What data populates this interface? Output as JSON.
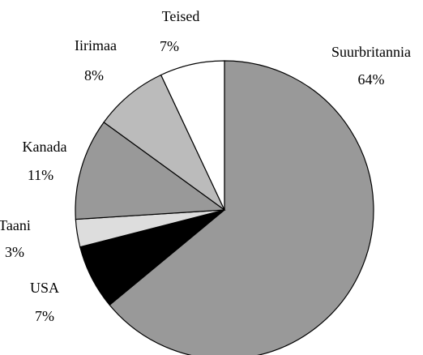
{
  "chart_data": {
    "type": "pie",
    "categories": [
      "Suurbritannia",
      "USA",
      "Taani",
      "Kanada",
      "Iirimaa",
      "Teised"
    ],
    "values": [
      64,
      7,
      3,
      11,
      8,
      7
    ],
    "value_labels": [
      "64%",
      "7%",
      "3%",
      "11%",
      "8%",
      "7%"
    ],
    "colors": [
      "#999999",
      "#000000",
      "#dddddd",
      "#999999",
      "#bbbbbb",
      "#ffffff"
    ]
  }
}
